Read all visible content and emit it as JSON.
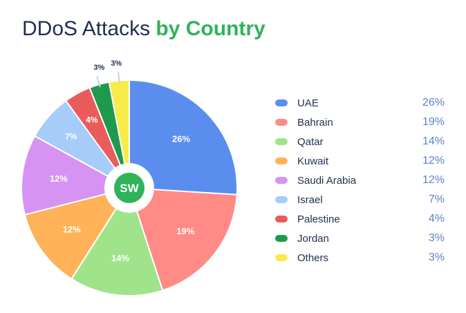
{
  "title": {
    "part1": "DDoS Attacks",
    "part2": "by Country"
  },
  "logo": {
    "text": "SW"
  },
  "colors": {
    "title_dark": "#1f2d4f",
    "title_green": "#2fb35b",
    "legend_value": "#5c7fc9"
  },
  "chart_data": {
    "type": "pie",
    "donut_center": true,
    "legend_position": "right",
    "slices": [
      {
        "label": "UAE",
        "value": 26,
        "display": "26%",
        "color": "#5b8def"
      },
      {
        "label": "Bahrain",
        "value": 19,
        "display": "19%",
        "color": "#ff8a86"
      },
      {
        "label": "Qatar",
        "value": 14,
        "display": "14%",
        "color": "#9fe38a"
      },
      {
        "label": "Kuwait",
        "value": 12,
        "display": "12%",
        "color": "#ffb257"
      },
      {
        "label": "Saudi Arabia",
        "value": 12,
        "display": "12%",
        "color": "#d693f2"
      },
      {
        "label": "Israel",
        "value": 7,
        "display": "7%",
        "color": "#a6ccfa"
      },
      {
        "label": "Palestine",
        "value": 4,
        "display": "4%",
        "color": "#ea5b5b"
      },
      {
        "label": "Jordan",
        "value": 3,
        "display": "3%",
        "color": "#1e9a4c"
      },
      {
        "label": "Others",
        "value": 3,
        "display": "3%",
        "color": "#f7ec4a"
      }
    ]
  }
}
